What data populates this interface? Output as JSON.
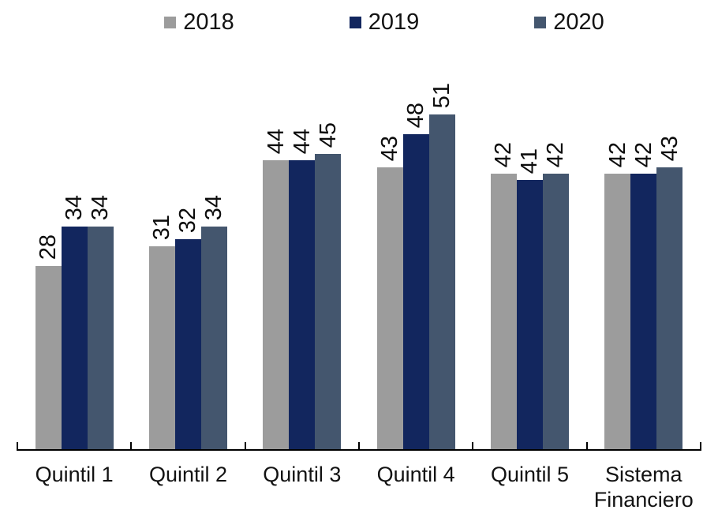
{
  "chart_data": {
    "type": "bar",
    "categories": [
      "Quintil 1",
      "Quintil 2",
      "Quintil 3",
      "Quintil 4",
      "Quintil 5",
      "Sistema Financiero"
    ],
    "series": [
      {
        "name": "2018",
        "color": "#9c9c9c",
        "values": [
          28,
          31,
          44,
          43,
          42,
          42
        ]
      },
      {
        "name": "2019",
        "color": "#12265e",
        "values": [
          34,
          32,
          44,
          48,
          41,
          42
        ]
      },
      {
        "name": "2020",
        "color": "#44566e",
        "values": [
          34,
          34,
          45,
          51,
          42,
          43
        ]
      }
    ],
    "ylim": [
      0,
      63
    ],
    "xlabel": "",
    "ylabel": "",
    "title": "",
    "grid": false,
    "legend_position": "top",
    "data_label_rotation_deg": -90,
    "axis_color": "#000000",
    "text_color": "#121212"
  }
}
